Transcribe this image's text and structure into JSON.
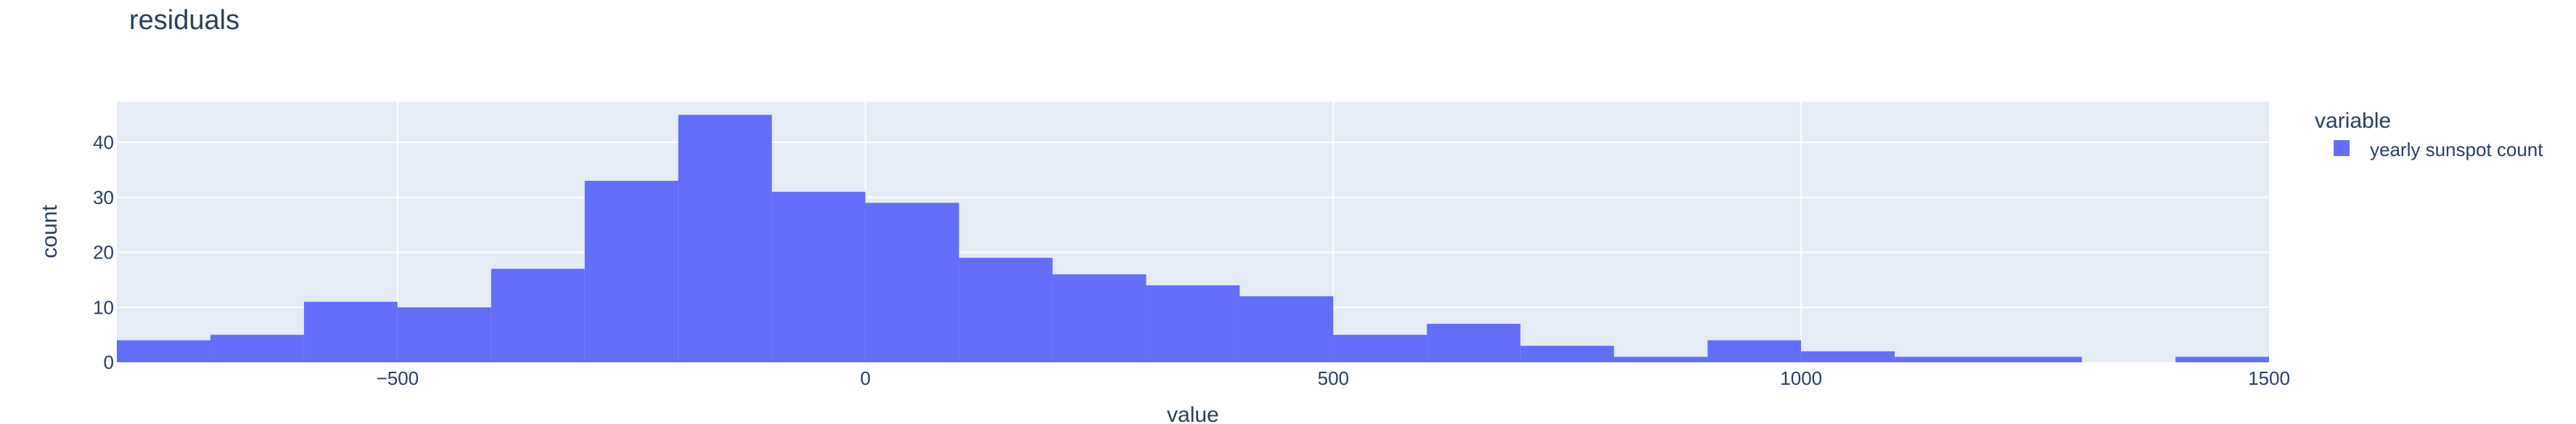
{
  "chart_data": {
    "type": "bar",
    "title": "residuals",
    "xlabel": "value",
    "ylabel": "count",
    "xlim": [
      -800,
      1500
    ],
    "ylim": [
      0,
      47.4
    ],
    "x_ticks": [
      -500,
      0,
      500,
      1000,
      1500
    ],
    "x_tick_labels": [
      "−500",
      "0",
      "500",
      "1000",
      "1500"
    ],
    "y_ticks": [
      0,
      10,
      20,
      30,
      40
    ],
    "y_tick_labels": [
      "0",
      "10",
      "20",
      "30",
      "40"
    ],
    "grid": true,
    "legend": {
      "title": "variable",
      "position": "right",
      "items": [
        "yearly sunspot count"
      ]
    },
    "series": [
      {
        "name": "yearly sunspot count",
        "color": "#636efa",
        "bin_edges": [
          -800,
          -700,
          -600,
          -500,
          -400,
          -300,
          -200,
          -100,
          0,
          100,
          200,
          300,
          400,
          500,
          600,
          700,
          800,
          900,
          1000,
          1100,
          1200,
          1300,
          1400,
          1500
        ],
        "counts": [
          4,
          5,
          11,
          10,
          17,
          33,
          45,
          31,
          29,
          19,
          16,
          14,
          12,
          5,
          7,
          3,
          1,
          4,
          2,
          1,
          1,
          0,
          1
        ]
      }
    ]
  },
  "colors": {
    "plot_bg": "#e5ecf6",
    "grid": "#ffffff",
    "text": "#2a3f5f",
    "bar": "#636efa"
  }
}
